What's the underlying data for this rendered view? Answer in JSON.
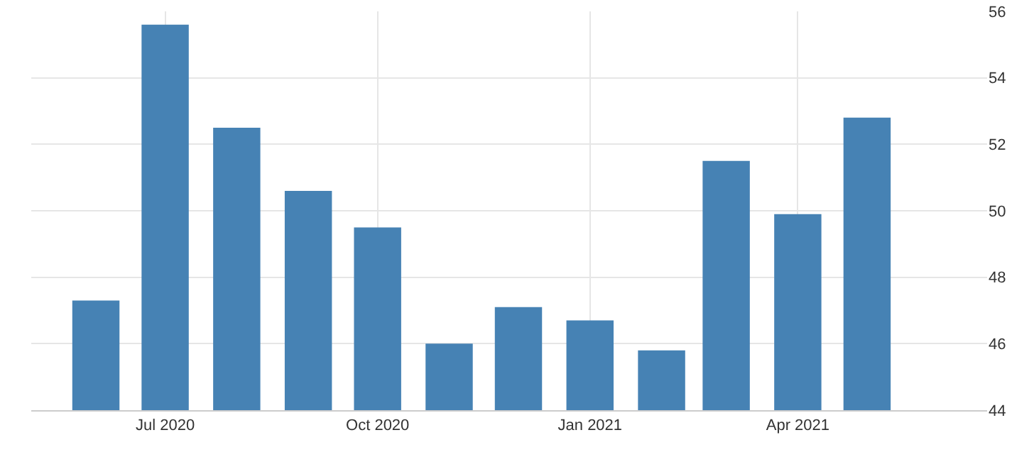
{
  "chart_data": {
    "type": "bar",
    "x": [
      "2020-06",
      "2020-07",
      "2020-08",
      "2020-09",
      "2020-10",
      "2020-11",
      "2020-12",
      "2021-01",
      "2021-02",
      "2021-03",
      "2021-04",
      "2021-05"
    ],
    "values": [
      47.3,
      55.6,
      52.5,
      50.6,
      49.5,
      46.0,
      47.1,
      46.7,
      45.8,
      51.5,
      49.9,
      52.8
    ],
    "color": "#4682b4",
    "xlim": [
      "2020-05-04",
      "2021-06-22"
    ],
    "xticks": [
      {
        "value": "2020-07",
        "label": "Jul 2020"
      },
      {
        "value": "2020-10",
        "label": "Oct 2020"
      },
      {
        "value": "2021-01",
        "label": "Jan 2021"
      },
      {
        "value": "2021-04",
        "label": "Apr 2021"
      }
    ],
    "ylim": [
      44,
      56
    ],
    "yticks": [
      44,
      46,
      48,
      50,
      52,
      54,
      56
    ],
    "grid": true
  }
}
